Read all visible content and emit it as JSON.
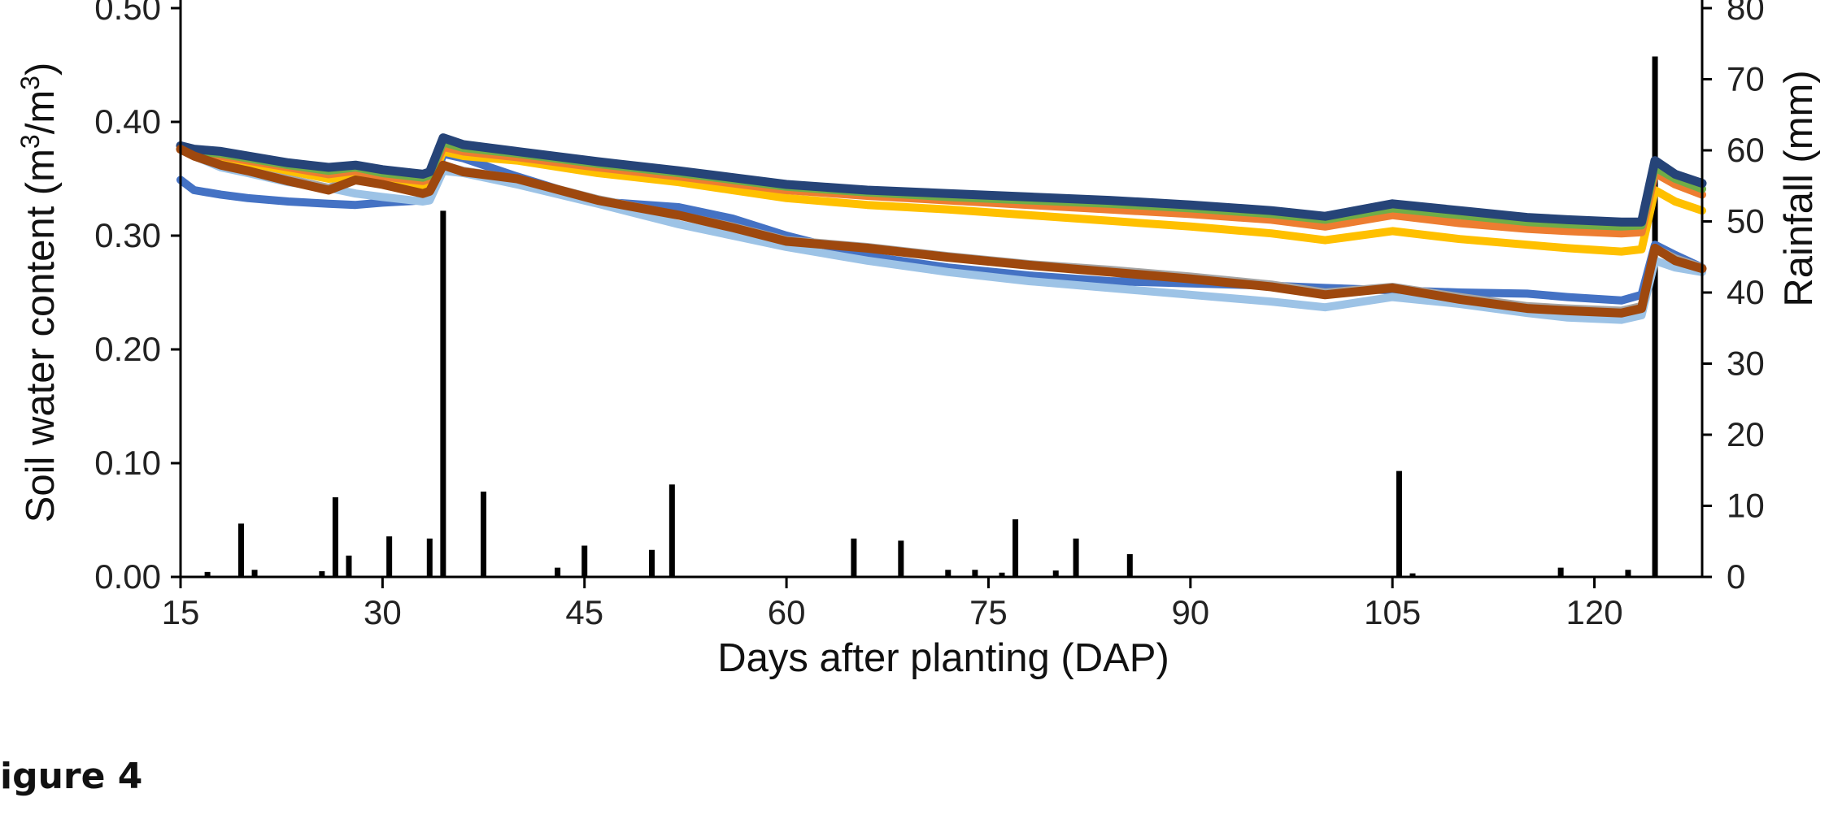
{
  "caption": "igure 4",
  "colors": {
    "axis": "#000000",
    "rain_bars": "#000000"
  },
  "chart_data": {
    "type": "line",
    "title": "",
    "xlabel": "Days after planting (DAP)",
    "ylabel_left_prefix": "Soil water content (m",
    "ylabel_left_mid": "/m",
    "ylabel_left_sup": "3",
    "ylabel_left_suffix": ")",
    "ylabel_right": "Rainfall (mm)",
    "xlim": [
      15,
      128
    ],
    "ylim_left": [
      0,
      0.5
    ],
    "ylim_right": [
      0,
      80
    ],
    "x_ticks": [
      15,
      30,
      45,
      60,
      75,
      90,
      105,
      120
    ],
    "x_tick_labels": [
      "15",
      "30",
      "45",
      "60",
      "75",
      "90",
      "105",
      "120"
    ],
    "y_left_ticks": [
      0,
      0.1,
      0.2,
      0.3,
      0.4,
      0.5
    ],
    "y_left_tick_labels": [
      "0.00",
      "0.10",
      "0.20",
      "0.30",
      "0.40",
      "0.50"
    ],
    "y_right_ticks": [
      0,
      10,
      20,
      30,
      40,
      50,
      60,
      70,
      80
    ],
    "y_right_tick_labels": [
      "0",
      "10",
      "20",
      "30",
      "40",
      "50",
      "60",
      "70",
      "80"
    ],
    "grid": false,
    "legend": "none",
    "series": [
      {
        "color": "#4472C4",
        "axis": "left",
        "x": [
          15,
          16,
          18,
          20,
          23,
          26,
          28,
          30,
          33,
          33.5,
          34.5,
          36,
          40,
          46,
          52,
          56,
          60,
          66,
          72,
          78,
          84,
          90,
          96,
          100,
          105,
          110,
          115,
          118,
          122,
          123.5,
          124.5,
          126,
          128
        ],
        "y": [
          0.349,
          0.34,
          0.336,
          0.333,
          0.33,
          0.328,
          0.327,
          0.329,
          0.331,
          0.332,
          0.372,
          0.368,
          0.352,
          0.33,
          0.325,
          0.315,
          0.3,
          0.282,
          0.272,
          0.265,
          0.26,
          0.258,
          0.256,
          0.254,
          0.252,
          0.25,
          0.249,
          0.246,
          0.243,
          0.248,
          0.292,
          0.283,
          0.272
        ]
      },
      {
        "color": "#9DC3E6",
        "axis": "left",
        "x": [
          15,
          16,
          18,
          20,
          23,
          26,
          28,
          30,
          33,
          33.5,
          34.5,
          36,
          40,
          46,
          52,
          56,
          60,
          66,
          72,
          78,
          84,
          90,
          96,
          100,
          105,
          110,
          115,
          118,
          122,
          123.5,
          124.5,
          126,
          128
        ],
        "y": [
          0.376,
          0.37,
          0.36,
          0.355,
          0.347,
          0.342,
          0.337,
          0.334,
          0.33,
          0.331,
          0.357,
          0.355,
          0.345,
          0.328,
          0.31,
          0.3,
          0.29,
          0.278,
          0.268,
          0.26,
          0.254,
          0.248,
          0.242,
          0.237,
          0.246,
          0.24,
          0.232,
          0.228,
          0.226,
          0.23,
          0.278,
          0.272,
          0.268
        ]
      },
      {
        "color": "#A5A5A5",
        "axis": "left",
        "x": [
          15,
          16,
          18,
          20,
          23,
          26,
          28,
          30,
          33,
          33.5,
          34.5,
          36,
          40,
          46,
          52,
          56,
          60,
          66,
          72,
          78,
          84,
          90,
          96,
          100,
          105,
          110,
          115,
          118,
          122,
          123.5,
          124.5,
          126,
          128
        ],
        "y": [
          0.378,
          0.372,
          0.365,
          0.358,
          0.35,
          0.342,
          0.35,
          0.346,
          0.338,
          0.34,
          0.362,
          0.357,
          0.35,
          0.332,
          0.318,
          0.308,
          0.296,
          0.29,
          0.282,
          0.275,
          0.27,
          0.264,
          0.257,
          0.25,
          0.255,
          0.246,
          0.238,
          0.236,
          0.234,
          0.238,
          0.289,
          0.28,
          0.272
        ]
      },
      {
        "color": "#FFC000",
        "axis": "left",
        "x": [
          15,
          16,
          18,
          20,
          23,
          26,
          28,
          30,
          33,
          33.5,
          34.5,
          36,
          40,
          46,
          52,
          56,
          60,
          66,
          72,
          78,
          84,
          90,
          96,
          100,
          105,
          110,
          115,
          118,
          122,
          123.5,
          124.5,
          126,
          128
        ],
        "y": [
          0.376,
          0.372,
          0.368,
          0.364,
          0.357,
          0.35,
          0.352,
          0.348,
          0.344,
          0.346,
          0.374,
          0.37,
          0.366,
          0.355,
          0.347,
          0.34,
          0.333,
          0.327,
          0.323,
          0.318,
          0.313,
          0.308,
          0.302,
          0.296,
          0.304,
          0.297,
          0.292,
          0.289,
          0.286,
          0.288,
          0.34,
          0.33,
          0.322
        ]
      },
      {
        "color": "#ED7D31",
        "axis": "left",
        "x": [
          15,
          16,
          18,
          20,
          23,
          26,
          28,
          30,
          33,
          33.5,
          34.5,
          36,
          40,
          46,
          52,
          56,
          60,
          66,
          72,
          78,
          84,
          90,
          96,
          100,
          105,
          110,
          115,
          118,
          122,
          123.5,
          124.5,
          126,
          128
        ],
        "y": [
          0.377,
          0.373,
          0.37,
          0.366,
          0.36,
          0.354,
          0.357,
          0.352,
          0.348,
          0.35,
          0.378,
          0.374,
          0.369,
          0.36,
          0.352,
          0.346,
          0.34,
          0.335,
          0.331,
          0.327,
          0.323,
          0.319,
          0.314,
          0.308,
          0.318,
          0.311,
          0.306,
          0.304,
          0.302,
          0.303,
          0.355,
          0.345,
          0.336
        ]
      },
      {
        "color": "#70AD47",
        "axis": "left",
        "x": [
          15,
          16,
          18,
          20,
          23,
          26,
          28,
          30,
          33,
          33.5,
          34.5,
          36,
          40,
          46,
          52,
          56,
          60,
          66,
          72,
          78,
          84,
          90,
          96,
          100,
          105,
          110,
          115,
          118,
          122,
          123.5,
          124.5,
          126,
          128
        ],
        "y": [
          0.378,
          0.374,
          0.372,
          0.368,
          0.362,
          0.357,
          0.36,
          0.355,
          0.351,
          0.353,
          0.382,
          0.377,
          0.372,
          0.363,
          0.355,
          0.349,
          0.343,
          0.338,
          0.334,
          0.331,
          0.328,
          0.324,
          0.319,
          0.314,
          0.324,
          0.318,
          0.312,
          0.31,
          0.308,
          0.309,
          0.36,
          0.35,
          0.341
        ]
      },
      {
        "color": "#264478",
        "axis": "left",
        "x": [
          15,
          16,
          18,
          20,
          23,
          26,
          28,
          30,
          33,
          33.5,
          34.5,
          36,
          40,
          46,
          52,
          56,
          60,
          66,
          72,
          78,
          84,
          90,
          96,
          100,
          105,
          110,
          115,
          118,
          122,
          123.5,
          124.5,
          126,
          128
        ],
        "y": [
          0.379,
          0.376,
          0.374,
          0.37,
          0.364,
          0.36,
          0.362,
          0.358,
          0.354,
          0.356,
          0.386,
          0.38,
          0.374,
          0.365,
          0.357,
          0.351,
          0.345,
          0.34,
          0.337,
          0.334,
          0.331,
          0.327,
          0.322,
          0.317,
          0.328,
          0.322,
          0.316,
          0.314,
          0.312,
          0.312,
          0.366,
          0.354,
          0.346
        ]
      },
      {
        "color": "#9E480E",
        "axis": "left",
        "x": [
          15,
          16,
          18,
          20,
          23,
          26,
          28,
          30,
          33,
          33.5,
          34.5,
          36,
          40,
          46,
          52,
          56,
          60,
          66,
          72,
          78,
          84,
          90,
          96,
          100,
          105,
          110,
          115,
          118,
          122,
          123.5,
          124.5,
          126,
          128
        ],
        "y": [
          0.376,
          0.37,
          0.362,
          0.357,
          0.348,
          0.34,
          0.349,
          0.345,
          0.337,
          0.339,
          0.362,
          0.356,
          0.35,
          0.331,
          0.318,
          0.307,
          0.295,
          0.289,
          0.281,
          0.274,
          0.268,
          0.262,
          0.255,
          0.248,
          0.254,
          0.244,
          0.236,
          0.234,
          0.232,
          0.236,
          0.289,
          0.278,
          0.271
        ]
      }
    ],
    "rainfall": {
      "axis": "right",
      "unit": "mm",
      "x": [
        17,
        19.5,
        20.5,
        25.5,
        26.5,
        27.5,
        30.5,
        33.5,
        34.5,
        37.5,
        43,
        45,
        50,
        51.5,
        65,
        68.5,
        72,
        74,
        76,
        77,
        80,
        81.5,
        85.5,
        105.5,
        106.5,
        117.5,
        122.5,
        124.5
      ],
      "values": [
        0.7,
        7.5,
        1,
        0.8,
        11.2,
        3,
        5.7,
        5.4,
        51.5,
        12,
        1.3,
        4.4,
        3.8,
        13,
        5.4,
        5.1,
        1,
        1,
        0.6,
        8.1,
        0.9,
        5.4,
        3.2,
        14.9,
        0.5,
        1.3,
        1,
        73.2
      ]
    }
  }
}
